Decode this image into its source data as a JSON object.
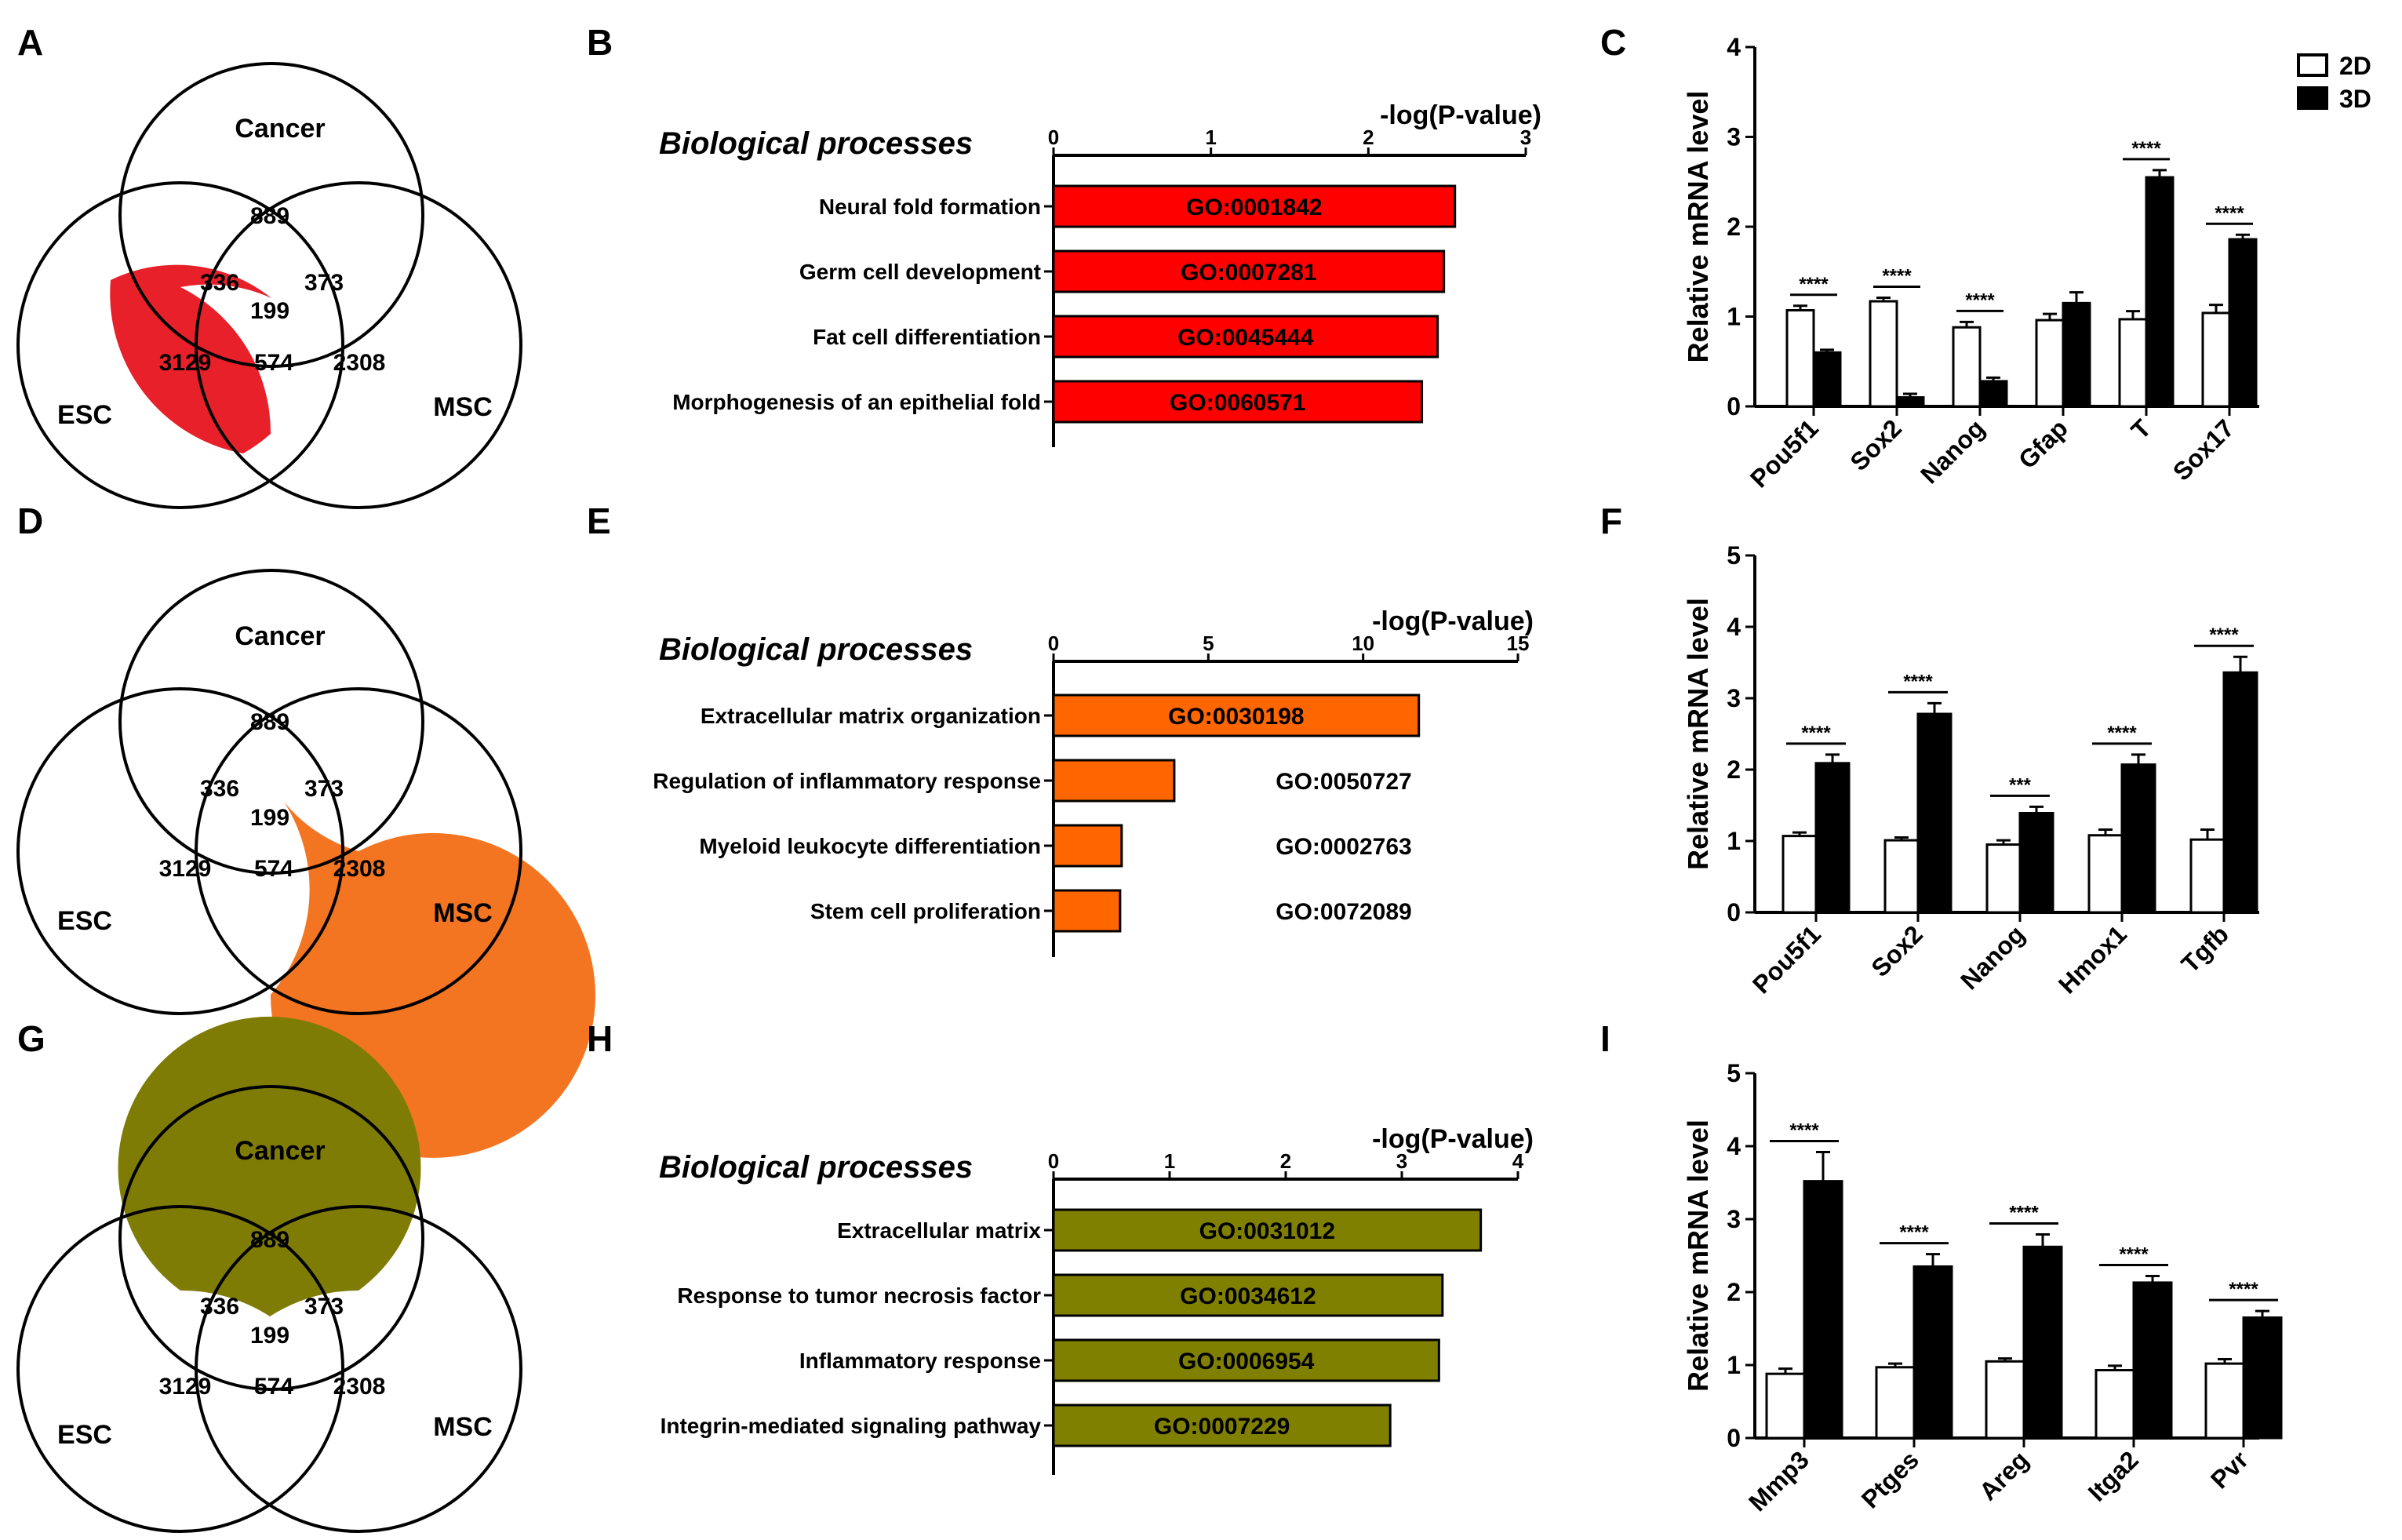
{
  "chart_data": [
    {
      "panel": "A",
      "type": "venn",
      "sets": [
        "Cancer",
        "ESC",
        "MSC"
      ],
      "regions": {
        "cancer_only": "889",
        "esc_only": "3129",
        "msc_only": "2308",
        "cancer_esc": "336",
        "cancer_msc": "373",
        "esc_msc": "574",
        "all": "199"
      },
      "highlight": "esc_only",
      "highlight_color": "#e8202a"
    },
    {
      "panel": "B",
      "type": "bar",
      "orientation": "horizontal",
      "title": "Biological processes",
      "axis_title": "-log(P-value)",
      "xlim": [
        0,
        3
      ],
      "ticks": [
        "0",
        "1",
        "2",
        "3"
      ],
      "categories": [
        "Neural fold formation",
        "Germ cell development",
        "Fat cell differentiation",
        "Morphogenesis of an epithelial fold"
      ],
      "values": [
        2.55,
        2.48,
        2.44,
        2.34
      ],
      "go_ids": [
        "GO:0001842",
        "GO:0007281",
        "GO:0045444",
        "GO:0060571"
      ],
      "color": "#ff0000"
    },
    {
      "panel": "C",
      "type": "bar",
      "ylabel": "Relative mRNA level",
      "ylim": [
        0,
        4
      ],
      "yticks": [
        "0",
        "1",
        "2",
        "3",
        "4"
      ],
      "categories": [
        "Pou5f1",
        "Sox2",
        "Nanog",
        "Gfap",
        "T",
        "Sox17"
      ],
      "series": [
        {
          "name": "2D",
          "values": [
            1.07,
            1.17,
            0.88,
            0.96,
            0.97,
            1.04
          ],
          "errors": [
            0.05,
            0.04,
            0.06,
            0.07,
            0.09,
            0.09
          ]
        },
        {
          "name": "3D",
          "values": [
            0.6,
            0.1,
            0.28,
            1.15,
            2.55,
            1.86
          ],
          "errors": [
            0.03,
            0.04,
            0.04,
            0.12,
            0.08,
            0.05
          ]
        }
      ],
      "significance": [
        "****",
        "****",
        "****",
        "",
        "****",
        "****"
      ],
      "legend": [
        "2D",
        "3D"
      ]
    },
    {
      "panel": "D",
      "type": "venn",
      "sets": [
        "Cancer",
        "ESC",
        "MSC"
      ],
      "regions": {
        "cancer_only": "889",
        "esc_only": "3129",
        "msc_only": "2308",
        "cancer_esc": "336",
        "cancer_msc": "373",
        "esc_msc": "574",
        "all": "199"
      },
      "highlight": "msc_only",
      "highlight_color": "#f47521"
    },
    {
      "panel": "E",
      "type": "bar",
      "orientation": "horizontal",
      "title": "Biological processes",
      "axis_title": "-log(P-value)",
      "xlim": [
        0,
        15
      ],
      "ticks": [
        "0",
        "5",
        "10",
        "15"
      ],
      "categories": [
        "Extracellular matrix organization",
        "Regulation of inflammatory response",
        "Myeloid leukocyte differentiation",
        "Stem cell proliferation"
      ],
      "values": [
        11.8,
        3.9,
        2.2,
        2.15
      ],
      "go_ids": [
        "GO:0030198",
        "GO:0050727",
        "GO:0002763",
        "GO:0072089"
      ],
      "color": "#ff6600"
    },
    {
      "panel": "F",
      "type": "bar",
      "ylabel": "Relative mRNA level",
      "ylim": [
        0,
        5
      ],
      "yticks": [
        "0",
        "1",
        "2",
        "3",
        "4",
        "5"
      ],
      "categories": [
        "Pou5f1",
        "Sox2",
        "Nanog",
        "Hmox1",
        "Tgfb"
      ],
      "series": [
        {
          "name": "2D",
          "values": [
            1.07,
            1.01,
            0.95,
            1.08,
            1.02
          ],
          "errors": [
            0.05,
            0.04,
            0.06,
            0.08,
            0.14
          ]
        },
        {
          "name": "3D",
          "values": [
            2.09,
            2.78,
            1.39,
            2.07,
            3.36
          ],
          "errors": [
            0.12,
            0.15,
            0.09,
            0.14,
            0.22
          ]
        }
      ],
      "significance": [
        "****",
        "****",
        "***",
        "****",
        "****"
      ]
    },
    {
      "panel": "G",
      "type": "venn",
      "sets": [
        "Cancer",
        "ESC",
        "MSC"
      ],
      "regions": {
        "cancer_only": "889",
        "esc_only": "3129",
        "msc_only": "2308",
        "cancer_esc": "336",
        "cancer_msc": "373",
        "esc_msc": "574",
        "all": "199"
      },
      "highlight": "cancer_only",
      "highlight_color": "#7f7c06"
    },
    {
      "panel": "H",
      "type": "bar",
      "orientation": "horizontal",
      "title": "Biological processes",
      "axis_title": "-log(P-value)",
      "xlim": [
        0,
        4
      ],
      "ticks": [
        "0",
        "1",
        "2",
        "3",
        "4"
      ],
      "categories": [
        "Extracellular matrix",
        "Response to tumor necrosis factor",
        "Inflammatory response",
        "Integrin-mediated signaling pathway"
      ],
      "values": [
        3.68,
        3.35,
        3.32,
        2.9
      ],
      "go_ids": [
        "GO:0031012",
        "GO:0034612",
        "GO:0006954",
        "GO:0007229"
      ],
      "color": "#808000"
    },
    {
      "panel": "I",
      "type": "bar",
      "ylabel": "Relative mRNA level",
      "ylim": [
        0,
        5
      ],
      "yticks": [
        "0",
        "1",
        "2",
        "3",
        "4",
        "5"
      ],
      "categories": [
        "Mmp3",
        "Ptges",
        "Areg",
        "Itga2",
        "Pvr"
      ],
      "series": [
        {
          "name": "2D",
          "values": [
            0.88,
            0.97,
            1.05,
            0.93,
            1.02
          ],
          "errors": [
            0.07,
            0.05,
            0.04,
            0.06,
            0.06
          ]
        },
        {
          "name": "3D",
          "values": [
            3.52,
            2.35,
            2.62,
            2.13,
            1.65
          ],
          "errors": [
            0.4,
            0.17,
            0.17,
            0.09,
            0.09
          ]
        }
      ],
      "significance": [
        "****",
        "****",
        "****",
        "****",
        "****"
      ]
    }
  ]
}
